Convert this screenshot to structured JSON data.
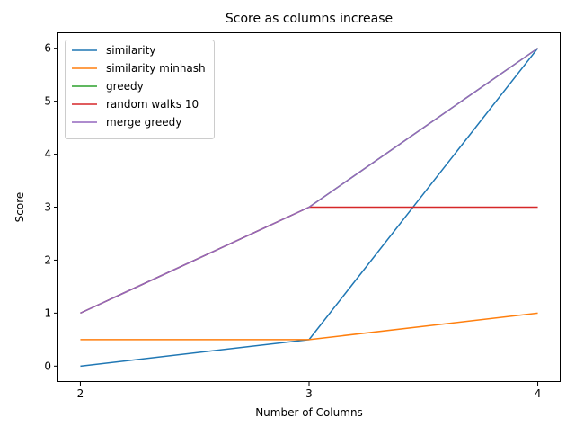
{
  "chart_data": {
    "type": "line",
    "title": "Score as columns increase",
    "xlabel": "Number of Columns",
    "ylabel": "Score",
    "x": [
      2,
      3,
      4
    ],
    "x_ticks": [
      "2",
      "3",
      "4"
    ],
    "y_ticks": [
      "0",
      "1",
      "2",
      "3",
      "4",
      "5",
      "6"
    ],
    "xlim": [
      1.9,
      4.1
    ],
    "ylim": [
      -0.3,
      6.3
    ],
    "grid": false,
    "legend_position": "upper-left",
    "series": [
      {
        "name": "similarity",
        "color": "#1f77b4",
        "values": [
          0,
          0.5,
          6
        ]
      },
      {
        "name": "similarity minhash",
        "color": "#ff7f0e",
        "values": [
          0.5,
          0.5,
          1
        ]
      },
      {
        "name": "greedy",
        "color": "#2ca02c",
        "values": [
          1,
          3,
          6
        ]
      },
      {
        "name": "random walks 10",
        "color": "#d62728",
        "values": [
          1,
          3,
          3
        ]
      },
      {
        "name": "merge greedy",
        "color": "#9467bd",
        "values": [
          1,
          3,
          6
        ]
      }
    ]
  }
}
